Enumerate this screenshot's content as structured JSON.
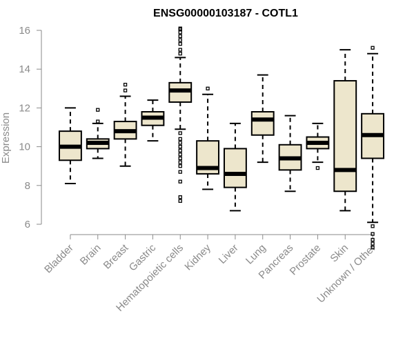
{
  "chart_data": {
    "type": "boxplot",
    "title": "ENSG00000103187 - COTL1",
    "xlabel": "",
    "ylabel": "Expression",
    "ylim": [
      5.2,
      16.2
    ],
    "yticks": [
      6,
      8,
      10,
      12,
      14,
      16
    ],
    "grid": false,
    "colors": {
      "box_fill": "#ede6cc",
      "stroke": "#000000",
      "axis": "#8a8a8a"
    },
    "categories": [
      "Bladder",
      "Brain",
      "Breast",
      "Gastric",
      "Hematopoietic cells",
      "Kidney",
      "Liver",
      "Lung",
      "Pancreas",
      "Prostate",
      "Skin",
      "Unknown / Other"
    ],
    "boxes": [
      {
        "category": "Bladder",
        "whisker_low": 8.1,
        "q1": 9.3,
        "median": 10.0,
        "q3": 10.8,
        "whisker_high": 12.0,
        "outliers": []
      },
      {
        "category": "Brain",
        "whisker_low": 9.4,
        "q1": 9.9,
        "median": 10.2,
        "q3": 10.4,
        "whisker_high": 11.2,
        "outliers": [
          11.3,
          11.9
        ]
      },
      {
        "category": "Breast",
        "whisker_low": 9.0,
        "q1": 10.4,
        "median": 10.8,
        "q3": 11.3,
        "whisker_high": 12.6,
        "outliers": [
          12.9,
          13.2
        ]
      },
      {
        "category": "Gastric",
        "whisker_low": 10.3,
        "q1": 11.1,
        "median": 11.5,
        "q3": 11.8,
        "whisker_high": 12.4,
        "outliers": []
      },
      {
        "category": "Hematopoietic cells",
        "whisker_low": 10.9,
        "q1": 12.3,
        "median": 12.9,
        "q3": 13.3,
        "whisker_high": 14.6,
        "outliers": [
          14.8,
          15.0,
          15.3,
          15.5,
          15.7,
          15.9,
          16.05,
          16.1,
          10.7,
          10.4,
          10.2,
          10.0,
          9.8,
          9.6,
          9.4,
          9.2,
          9.0,
          8.7,
          8.2,
          7.4,
          7.2
        ]
      },
      {
        "category": "Kidney",
        "whisker_low": 7.8,
        "q1": 8.6,
        "median": 8.9,
        "q3": 10.3,
        "whisker_high": 12.7,
        "outliers": [
          13.0
        ]
      },
      {
        "category": "Liver",
        "whisker_low": 6.7,
        "q1": 7.9,
        "median": 8.6,
        "q3": 9.9,
        "whisker_high": 11.2,
        "outliers": []
      },
      {
        "category": "Lung",
        "whisker_low": 9.2,
        "q1": 10.6,
        "median": 11.4,
        "q3": 11.8,
        "whisker_high": 13.7,
        "outliers": []
      },
      {
        "category": "Pancreas",
        "whisker_low": 7.7,
        "q1": 8.8,
        "median": 9.4,
        "q3": 10.1,
        "whisker_high": 11.6,
        "outliers": []
      },
      {
        "category": "Prostate",
        "whisker_low": 9.2,
        "q1": 9.9,
        "median": 10.2,
        "q3": 10.5,
        "whisker_high": 11.2,
        "outliers": [
          8.9
        ]
      },
      {
        "category": "Skin",
        "whisker_low": 6.7,
        "q1": 7.7,
        "median": 8.8,
        "q3": 13.4,
        "whisker_high": 15.0,
        "outliers": []
      },
      {
        "category": "Unknown / Other",
        "whisker_low": 6.1,
        "q1": 9.4,
        "median": 10.6,
        "q3": 11.7,
        "whisker_high": 14.8,
        "outliers": [
          15.1,
          5.9,
          5.5,
          5.2,
          5.0,
          4.8
        ]
      }
    ]
  }
}
